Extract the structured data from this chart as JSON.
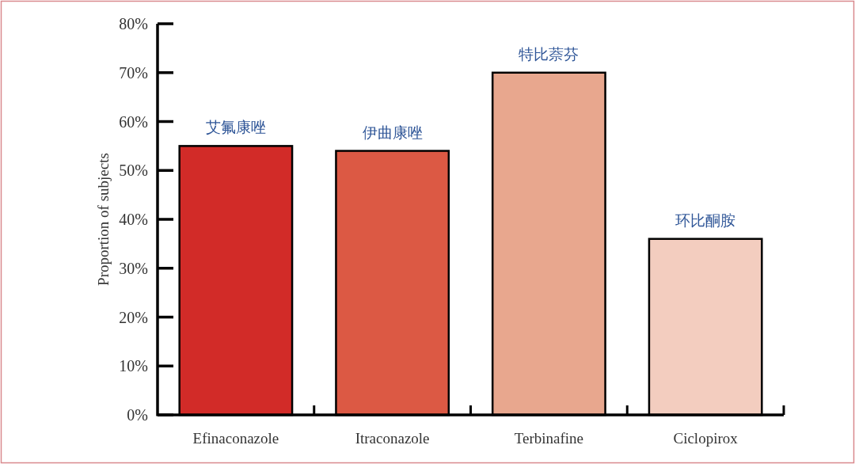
{
  "chart_data": {
    "type": "bar",
    "ylabel": "Proportion of subjects",
    "categories": [
      "Efinaconazole",
      "Itraconazole",
      "Terbinafine",
      "Ciclopirox"
    ],
    "values": [
      55,
      54,
      70,
      36
    ],
    "colors": [
      "#d22b28",
      "#dc5944",
      "#e8a78e",
      "#f3cdbf"
    ],
    "ylim": [
      0,
      80
    ],
    "yticks": [
      {
        "value": 0,
        "label": "0%"
      },
      {
        "value": 10,
        "label": "10%"
      },
      {
        "value": 20,
        "label": "20%"
      },
      {
        "value": 30,
        "label": "30%"
      },
      {
        "value": 40,
        "label": "40%"
      },
      {
        "value": 50,
        "label": "50%"
      },
      {
        "value": 60,
        "label": "60%"
      },
      {
        "value": 70,
        "label": "70%"
      },
      {
        "value": 80,
        "label": "80%"
      }
    ],
    "annotations": [
      {
        "text": "艾氟康唑",
        "x": "Efinaconazole",
        "y": 55
      },
      {
        "text": "伊曲康唑",
        "x": "Itraconazole",
        "y": 54
      },
      {
        "text": "特比萘芬",
        "x": "Terbinafine",
        "y": 70
      },
      {
        "text": "环比酮胺",
        "x": "Ciclopirox",
        "y": 36
      }
    ]
  }
}
